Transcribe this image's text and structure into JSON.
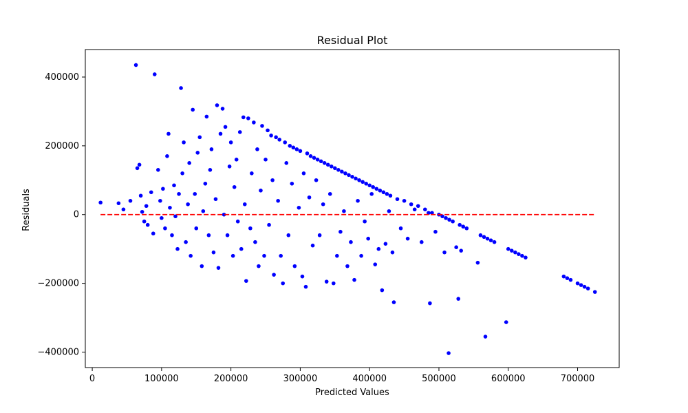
{
  "chart_data": {
    "type": "scatter",
    "title": "Residual Plot",
    "xlabel": "Predicted Values",
    "ylabel": "Residuals",
    "xlim": [
      -10000,
      760000
    ],
    "ylim": [
      -445000,
      480000
    ],
    "x_ticks": [
      0,
      100000,
      200000,
      300000,
      400000,
      500000,
      600000,
      700000
    ],
    "x_tick_labels": [
      "0",
      "100000",
      "200000",
      "300000",
      "400000",
      "500000",
      "600000",
      "700000"
    ],
    "y_ticks": [
      -400000,
      -200000,
      0,
      200000,
      400000
    ],
    "y_tick_labels": [
      "−400000",
      "−200000",
      "0",
      "200000",
      "400000"
    ],
    "grid": false,
    "colors": {
      "points": "#0000ff",
      "reference_line": "#ff0000",
      "axes": "#000000"
    },
    "reference_line": {
      "y": 0,
      "x_start": 12000,
      "x_end": 725000,
      "style": "dashed"
    },
    "series": [
      {
        "points": [
          [
            12000,
            35000
          ],
          [
            38000,
            33000
          ],
          [
            45000,
            15000
          ],
          [
            55000,
            40000
          ],
          [
            63000,
            435000
          ],
          [
            65000,
            135000
          ],
          [
            68000,
            145000
          ],
          [
            70000,
            55000
          ],
          [
            72000,
            8000
          ],
          [
            75000,
            -20000
          ],
          [
            78000,
            25000
          ],
          [
            80000,
            -30000
          ],
          [
            85000,
            65000
          ],
          [
            88000,
            -55000
          ],
          [
            90000,
            408000
          ],
          [
            95000,
            130000
          ],
          [
            98000,
            40000
          ],
          [
            100000,
            -10000
          ],
          [
            102000,
            75000
          ],
          [
            105000,
            -40000
          ],
          [
            108000,
            170000
          ],
          [
            110000,
            235000
          ],
          [
            112000,
            20000
          ],
          [
            115000,
            -60000
          ],
          [
            118000,
            85000
          ],
          [
            120000,
            -5000
          ],
          [
            123000,
            -100000
          ],
          [
            125000,
            60000
          ],
          [
            128000,
            368000
          ],
          [
            130000,
            120000
          ],
          [
            132000,
            210000
          ],
          [
            135000,
            -80000
          ],
          [
            138000,
            30000
          ],
          [
            140000,
            150000
          ],
          [
            142000,
            -120000
          ],
          [
            145000,
            305000
          ],
          [
            148000,
            60000
          ],
          [
            150000,
            -40000
          ],
          [
            152000,
            180000
          ],
          [
            155000,
            225000
          ],
          [
            158000,
            -150000
          ],
          [
            160000,
            10000
          ],
          [
            163000,
            90000
          ],
          [
            165000,
            285000
          ],
          [
            168000,
            -60000
          ],
          [
            170000,
            130000
          ],
          [
            172000,
            190000
          ],
          [
            175000,
            -110000
          ],
          [
            178000,
            45000
          ],
          [
            180000,
            318000
          ],
          [
            182000,
            -155000
          ],
          [
            185000,
            235000
          ],
          [
            188000,
            308000
          ],
          [
            190000,
            0
          ],
          [
            192000,
            255000
          ],
          [
            195000,
            -60000
          ],
          [
            198000,
            140000
          ],
          [
            200000,
            210000
          ],
          [
            203000,
            -120000
          ],
          [
            205000,
            80000
          ],
          [
            208000,
            160000
          ],
          [
            210000,
            -20000
          ],
          [
            213000,
            240000
          ],
          [
            215000,
            -100000
          ],
          [
            218000,
            283000
          ],
          [
            220000,
            30000
          ],
          [
            222000,
            -193000
          ],
          [
            225000,
            280000
          ],
          [
            228000,
            -40000
          ],
          [
            230000,
            120000
          ],
          [
            233000,
            268000
          ],
          [
            235000,
            -80000
          ],
          [
            238000,
            190000
          ],
          [
            240000,
            -150000
          ],
          [
            243000,
            70000
          ],
          [
            245000,
            258000
          ],
          [
            248000,
            -120000
          ],
          [
            250000,
            160000
          ],
          [
            253000,
            245000
          ],
          [
            255000,
            -30000
          ],
          [
            258000,
            230000
          ],
          [
            260000,
            100000
          ],
          [
            262000,
            -175000
          ],
          [
            265000,
            225000
          ],
          [
            268000,
            40000
          ],
          [
            270000,
            218000
          ],
          [
            272000,
            -120000
          ],
          [
            275000,
            -200000
          ],
          [
            278000,
            210000
          ],
          [
            280000,
            150000
          ],
          [
            283000,
            -60000
          ],
          [
            285000,
            200000
          ],
          [
            288000,
            90000
          ],
          [
            290000,
            195000
          ],
          [
            292000,
            -150000
          ],
          [
            295000,
            190000
          ],
          [
            298000,
            20000
          ],
          [
            300000,
            185000
          ],
          [
            303000,
            -180000
          ],
          [
            305000,
            120000
          ],
          [
            308000,
            -210000
          ],
          [
            310000,
            178000
          ],
          [
            313000,
            50000
          ],
          [
            315000,
            170000
          ],
          [
            318000,
            -90000
          ],
          [
            320000,
            165000
          ],
          [
            323000,
            100000
          ],
          [
            325000,
            160000
          ],
          [
            328000,
            -60000
          ],
          [
            330000,
            155000
          ],
          [
            333000,
            30000
          ],
          [
            335000,
            150000
          ],
          [
            338000,
            -195000
          ],
          [
            340000,
            145000
          ],
          [
            343000,
            60000
          ],
          [
            345000,
            140000
          ],
          [
            348000,
            -200000
          ],
          [
            350000,
            135000
          ],
          [
            353000,
            -120000
          ],
          [
            355000,
            130000
          ],
          [
            358000,
            -50000
          ],
          [
            360000,
            125000
          ],
          [
            363000,
            10000
          ],
          [
            365000,
            120000
          ],
          [
            368000,
            -150000
          ],
          [
            370000,
            115000
          ],
          [
            373000,
            -80000
          ],
          [
            375000,
            110000
          ],
          [
            378000,
            -190000
          ],
          [
            380000,
            105000
          ],
          [
            383000,
            40000
          ],
          [
            385000,
            100000
          ],
          [
            388000,
            -120000
          ],
          [
            390000,
            95000
          ],
          [
            393000,
            -20000
          ],
          [
            395000,
            90000
          ],
          [
            398000,
            -70000
          ],
          [
            400000,
            85000
          ],
          [
            403000,
            60000
          ],
          [
            405000,
            80000
          ],
          [
            408000,
            -145000
          ],
          [
            410000,
            75000
          ],
          [
            413000,
            -100000
          ],
          [
            415000,
            70000
          ],
          [
            418000,
            -220000
          ],
          [
            420000,
            65000
          ],
          [
            423000,
            -85000
          ],
          [
            425000,
            60000
          ],
          [
            428000,
            10000
          ],
          [
            430000,
            55000
          ],
          [
            433000,
            -110000
          ],
          [
            435000,
            -255000
          ],
          [
            440000,
            45000
          ],
          [
            445000,
            -40000
          ],
          [
            450000,
            40000
          ],
          [
            455000,
            -70000
          ],
          [
            460000,
            30000
          ],
          [
            465000,
            15000
          ],
          [
            470000,
            25000
          ],
          [
            475000,
            -80000
          ],
          [
            480000,
            15000
          ],
          [
            485000,
            5000
          ],
          [
            487000,
            -258000
          ],
          [
            490000,
            5000
          ],
          [
            495000,
            -50000
          ],
          [
            500000,
            0
          ],
          [
            505000,
            -5000
          ],
          [
            508000,
            -110000
          ],
          [
            510000,
            -10000
          ],
          [
            514000,
            -403000
          ],
          [
            515000,
            -15000
          ],
          [
            520000,
            -20000
          ],
          [
            525000,
            -95000
          ],
          [
            528000,
            -245000
          ],
          [
            530000,
            -30000
          ],
          [
            532000,
            -105000
          ],
          [
            535000,
            -35000
          ],
          [
            540000,
            -40000
          ],
          [
            556000,
            -140000
          ],
          [
            560000,
            -60000
          ],
          [
            565000,
            -65000
          ],
          [
            567000,
            -355000
          ],
          [
            570000,
            -70000
          ],
          [
            575000,
            -75000
          ],
          [
            580000,
            -80000
          ],
          [
            597000,
            -313000
          ],
          [
            600000,
            -100000
          ],
          [
            605000,
            -105000
          ],
          [
            610000,
            -110000
          ],
          [
            615000,
            -115000
          ],
          [
            620000,
            -120000
          ],
          [
            625000,
            -125000
          ],
          [
            680000,
            -180000
          ],
          [
            685000,
            -185000
          ],
          [
            690000,
            -190000
          ],
          [
            700000,
            -200000
          ],
          [
            705000,
            -205000
          ],
          [
            710000,
            -210000
          ],
          [
            715000,
            -215000
          ],
          [
            725000,
            -225000
          ]
        ]
      }
    ]
  }
}
